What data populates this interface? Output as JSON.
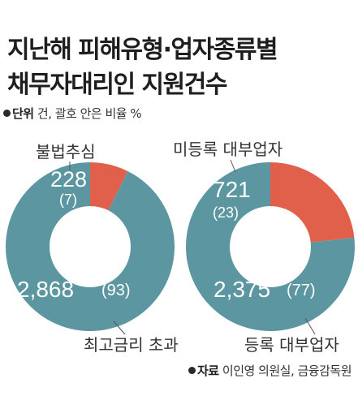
{
  "header": {
    "title_line1": "지난해 피해유형·업자종류별",
    "title_line2": "채무자대리인 지원건수",
    "unit_label": "단위",
    "unit_text": "건, 괄호 안은 비율 %"
  },
  "footer": {
    "source_label": "자료",
    "source_text": "이인영 의원실, 금융감독원"
  },
  "colors": {
    "teal": "#5b96a1",
    "red": "#e0604b"
  },
  "chart_data": [
    {
      "type": "pie",
      "title": "",
      "slices": [
        {
          "label": "불법추심",
          "value": 228,
          "percent": 7,
          "value_text": "228",
          "percent_text": "(7)",
          "color": "#e0604b"
        },
        {
          "label": "최고금리 초과",
          "value": 2868,
          "percent": 93,
          "value_text": "2,868",
          "percent_text": "(93)",
          "color": "#5b96a1"
        }
      ]
    },
    {
      "type": "pie",
      "title": "",
      "slices": [
        {
          "label": "미등록 대부업자",
          "value": 721,
          "percent": 23,
          "value_text": "721",
          "percent_text": "(23)",
          "color": "#e0604b"
        },
        {
          "label": "등록 대부업자",
          "value": 2375,
          "percent": 77,
          "value_text": "2,375",
          "percent_text": "(77)",
          "color": "#5b96a1"
        }
      ]
    }
  ]
}
